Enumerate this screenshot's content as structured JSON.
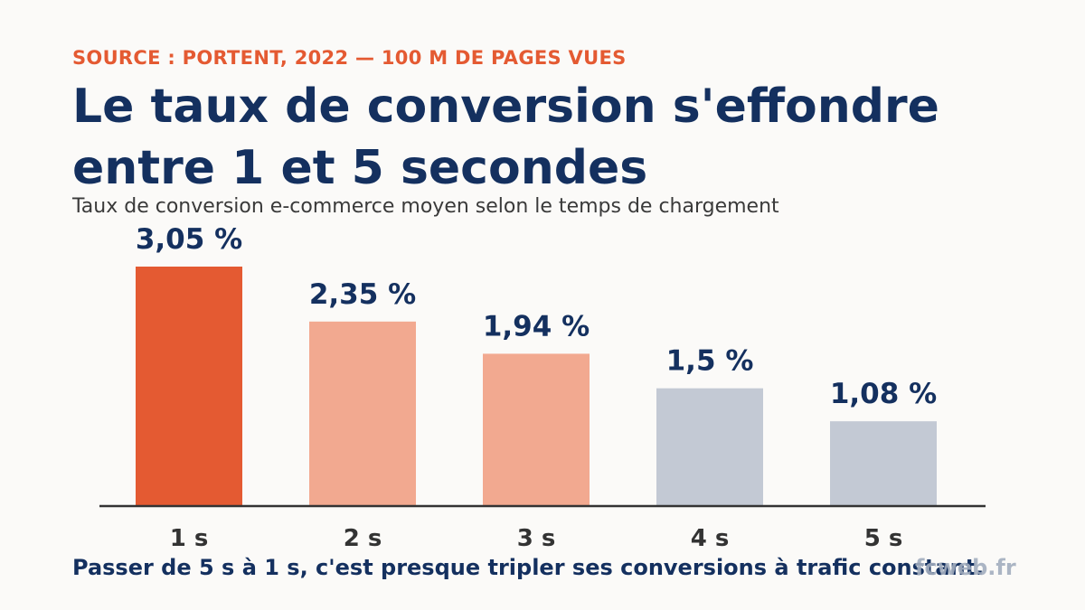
{
  "header": {
    "kicker": "SOURCE : PORTENT, 2022 — 100 M DE PAGES VUES",
    "title": "Le taux de conversion s'effondre entre 1 et 5 secondes",
    "subtitle": "Taux de conversion e-commerce moyen selon le temps de chargement"
  },
  "chart_data": {
    "type": "bar",
    "categories": [
      "1 s",
      "2 s",
      "3 s",
      "4 s",
      "5 s"
    ],
    "values": [
      3.05,
      2.35,
      1.94,
      1.5,
      1.08
    ],
    "value_labels": [
      "3,05 %",
      "2,35 %",
      "1,94 %",
      "1,5 %",
      "1,08 %"
    ],
    "bar_colors": [
      "#E45A32",
      "#F2A990",
      "#F2A990",
      "#C3C9D4",
      "#C3C9D4"
    ],
    "label_color": "#14305F",
    "axis_color": "#333333",
    "ylim": [
      0,
      3.05
    ],
    "grid": false,
    "xlabel": "",
    "ylabel": ""
  },
  "footer": {
    "note": "Passer de 5 s à 1 s, c'est presque tripler ses conversions à trafic constant.",
    "brand": "fcweb.fr"
  }
}
